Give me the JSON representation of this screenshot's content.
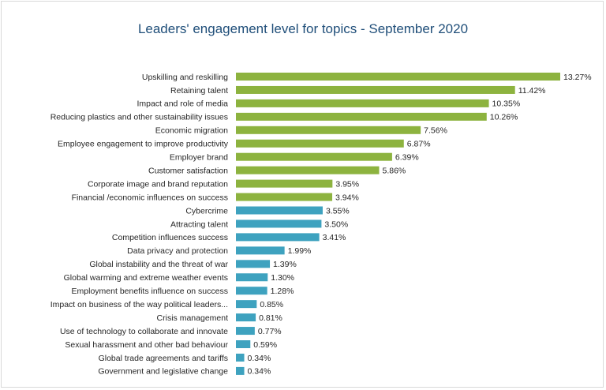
{
  "chart_data": {
    "type": "bar",
    "orientation": "horizontal",
    "title": "Leaders' engagement level for topics - September 2020",
    "categories": [
      "Upskilling and reskilling",
      "Retaining talent",
      "Impact and role of media",
      "Reducing plastics and other sustainability issues",
      "Economic migration",
      "Employee engagement to improve productivity",
      "Employer brand",
      "Customer satisfaction",
      "Corporate image and brand reputation",
      "Financial /economic influences on success",
      "Cybercrime",
      "Attracting talent",
      "Competition influences success",
      "Data privacy and protection",
      "Global instability and the threat of war",
      "Global warming and extreme weather events",
      "Employment benefits influence on success",
      "Impact on business of the way political leaders...",
      "Crisis management",
      "Use of technology to collaborate and innovate",
      "Sexual harassment and other bad behaviour",
      "Global trade agreements and tariffs",
      "Government and legislative change"
    ],
    "values": [
      13.27,
      11.42,
      10.35,
      10.26,
      7.56,
      6.87,
      6.39,
      5.86,
      3.95,
      3.94,
      3.55,
      3.5,
      3.41,
      1.99,
      1.39,
      1.3,
      1.28,
      0.85,
      0.81,
      0.77,
      0.59,
      0.34,
      0.34
    ],
    "value_labels": [
      "13.27%",
      "11.42%",
      "10.35%",
      "10.26%",
      "7.56%",
      "6.87%",
      "6.39%",
      "5.86%",
      "3.95%",
      "3.94%",
      "3.55%",
      "3.50%",
      "3.41%",
      "1.99%",
      "1.39%",
      "1.30%",
      "1.28%",
      "0.85%",
      "0.81%",
      "0.77%",
      "0.59%",
      "0.34%",
      "0.34%"
    ],
    "bar_colors": [
      "#8db33f",
      "#8db33f",
      "#8db33f",
      "#8db33f",
      "#8db33f",
      "#8db33f",
      "#8db33f",
      "#8db33f",
      "#8db33f",
      "#8db33f",
      "#3ea2bf",
      "#3ea2bf",
      "#3ea2bf",
      "#3ea2bf",
      "#3ea2bf",
      "#3ea2bf",
      "#3ea2bf",
      "#3ea2bf",
      "#3ea2bf",
      "#3ea2bf",
      "#3ea2bf",
      "#3ea2bf",
      "#3ea2bf"
    ],
    "xlim": [
      0,
      13.27
    ],
    "grid": false,
    "legend": "none"
  },
  "colors": {
    "title": "#1f4e79",
    "green_bar": "#8db33f",
    "blue_bar": "#3ea2bf",
    "frame_border": "#d9d9d9"
  }
}
